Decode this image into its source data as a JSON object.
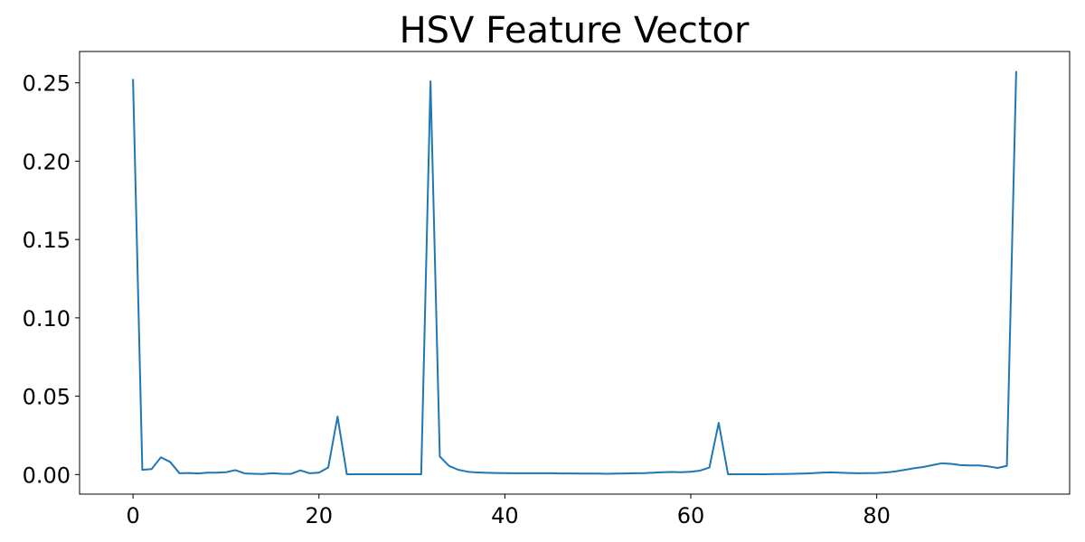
{
  "chart_data": {
    "type": "line",
    "title": "HSV Feature Vector",
    "xlabel": "",
    "ylabel": "",
    "xlim": [
      -5.75,
      100.75
    ],
    "ylim": [
      -0.0125,
      0.27
    ],
    "xticks": [
      0,
      20,
      40,
      60,
      80
    ],
    "xtick_labels": [
      "0",
      "20",
      "40",
      "60",
      "80"
    ],
    "yticks": [
      0.0,
      0.05,
      0.1,
      0.15,
      0.2,
      0.25
    ],
    "ytick_labels": [
      "0.00",
      "0.05",
      "0.10",
      "0.15",
      "0.20",
      "0.25"
    ],
    "grid": false,
    "legend": "none",
    "series": [
      {
        "color": "#1f77b4",
        "x": [
          0,
          1,
          2,
          3,
          4,
          5,
          6,
          7,
          8,
          9,
          10,
          11,
          12,
          13,
          14,
          15,
          16,
          17,
          18,
          19,
          20,
          21,
          22,
          23,
          24,
          25,
          26,
          27,
          28,
          29,
          30,
          31,
          32,
          33,
          34,
          35,
          36,
          37,
          38,
          39,
          40,
          41,
          42,
          43,
          44,
          45,
          46,
          47,
          48,
          49,
          50,
          51,
          52,
          53,
          54,
          55,
          56,
          57,
          58,
          59,
          60,
          61,
          62,
          63,
          64,
          65,
          66,
          67,
          68,
          69,
          70,
          71,
          72,
          73,
          74,
          75,
          76,
          77,
          78,
          79,
          80,
          81,
          82,
          83,
          84,
          85,
          86,
          87,
          88,
          89,
          90,
          91,
          92,
          93,
          94,
          95
        ],
        "values": [
          0.252,
          0.003,
          0.0035,
          0.011,
          0.008,
          0.0008,
          0.001,
          0.0007,
          0.0012,
          0.0012,
          0.0015,
          0.0028,
          0.0007,
          0.0005,
          0.0003,
          0.0008,
          0.0005,
          0.0004,
          0.0027,
          0.0008,
          0.0012,
          0.0045,
          0.037,
          0.0002,
          0.0002,
          0.0002,
          0.0002,
          0.0002,
          0.0002,
          0.0002,
          0.0002,
          0.0002,
          0.251,
          0.0115,
          0.0055,
          0.003,
          0.0018,
          0.0013,
          0.0011,
          0.001,
          0.0009,
          0.0008,
          0.0008,
          0.0008,
          0.0008,
          0.0008,
          0.0007,
          0.0007,
          0.0006,
          0.0006,
          0.0006,
          0.0005,
          0.0006,
          0.0007,
          0.0008,
          0.0009,
          0.0012,
          0.0015,
          0.0016,
          0.0015,
          0.0018,
          0.0025,
          0.0045,
          0.033,
          0.0002,
          0.0002,
          0.0002,
          0.0002,
          0.0002,
          0.0003,
          0.0003,
          0.0005,
          0.0006,
          0.0008,
          0.0012,
          0.0014,
          0.0012,
          0.001,
          0.0008,
          0.0009,
          0.001,
          0.0013,
          0.002,
          0.003,
          0.004,
          0.0048,
          0.006,
          0.0072,
          0.0068,
          0.006,
          0.0058,
          0.0058,
          0.0052,
          0.0042,
          0.0055,
          0.257
        ]
      }
    ]
  }
}
